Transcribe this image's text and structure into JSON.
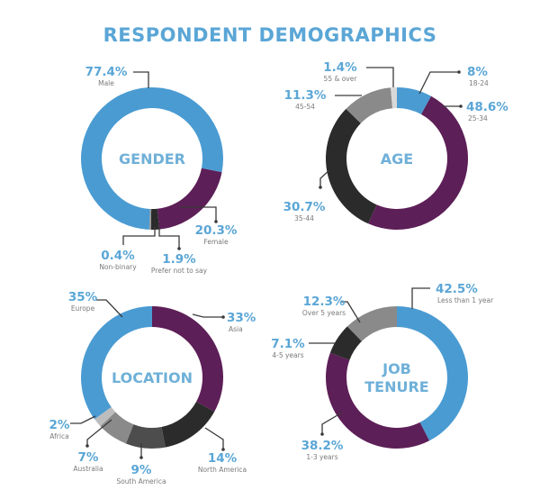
{
  "title": "RESPONDENT DEMOGRAPHICS",
  "colors": {
    "blue": "#4a9bd2",
    "purple": "#5d1f57",
    "black": "#2b2b2b",
    "dark_gray": "#4d4d4d",
    "mid_gray": "#8a8a8a",
    "light_gray": "#bdbdbd",
    "pale_gray": "#d9d9d9",
    "label_blue": "#5aa6d6"
  },
  "chart_data": [
    {
      "type": "pie",
      "variant": "donut",
      "title": "GENDER",
      "title_lines": [
        "GENDER"
      ],
      "categories": [
        "Female",
        "Prefer not to say",
        "Non-binary",
        "Male"
      ],
      "values": [
        20.3,
        1.9,
        0.4,
        77.4
      ],
      "value_labels": [
        "20.3%",
        "1.9%",
        "0.4%",
        "77.4%"
      ],
      "colors": [
        "#5d1f57",
        "#2b2b2b",
        "#9a9a9a",
        "#4a9bd2"
      ]
    },
    {
      "type": "pie",
      "variant": "donut",
      "title": "AGE",
      "title_lines": [
        "AGE"
      ],
      "categories": [
        "18-24",
        "25-34",
        "35-44",
        "45-54",
        "55 & over"
      ],
      "values": [
        8,
        48.6,
        30.7,
        11.3,
        1.4
      ],
      "value_labels": [
        "8%",
        "48.6%",
        "30.7%",
        "11.3%",
        "1.4%"
      ],
      "colors": [
        "#4a9bd2",
        "#5d1f57",
        "#2b2b2b",
        "#8a8a8a",
        "#d9d9d9"
      ]
    },
    {
      "type": "pie",
      "variant": "donut",
      "title": "LOCATION",
      "title_lines": [
        "LOCATION"
      ],
      "categories": [
        "Asia",
        "North America",
        "South America",
        "Australia",
        "Africa",
        "Europe"
      ],
      "values": [
        33,
        14,
        9,
        7,
        2,
        35
      ],
      "value_labels": [
        "33%",
        "14%",
        "9%",
        "7%",
        "2%",
        "35%"
      ],
      "colors": [
        "#5d1f57",
        "#2b2b2b",
        "#4d4d4d",
        "#8a8a8a",
        "#bdbdbd",
        "#4a9bd2"
      ]
    },
    {
      "type": "pie",
      "variant": "donut",
      "title": "JOB TENURE",
      "title_lines": [
        "JOB",
        "TENURE"
      ],
      "categories": [
        "Less than 1 year",
        "1-3 years",
        "4-5 years",
        "Over 5 years"
      ],
      "values": [
        42.5,
        38.2,
        7.1,
        12.3
      ],
      "value_labels": [
        "42.5%",
        "38.2%",
        "7.1%",
        "12.3%"
      ],
      "colors": [
        "#4a9bd2",
        "#5d1f57",
        "#2b2b2b",
        "#8a8a8a"
      ]
    }
  ]
}
